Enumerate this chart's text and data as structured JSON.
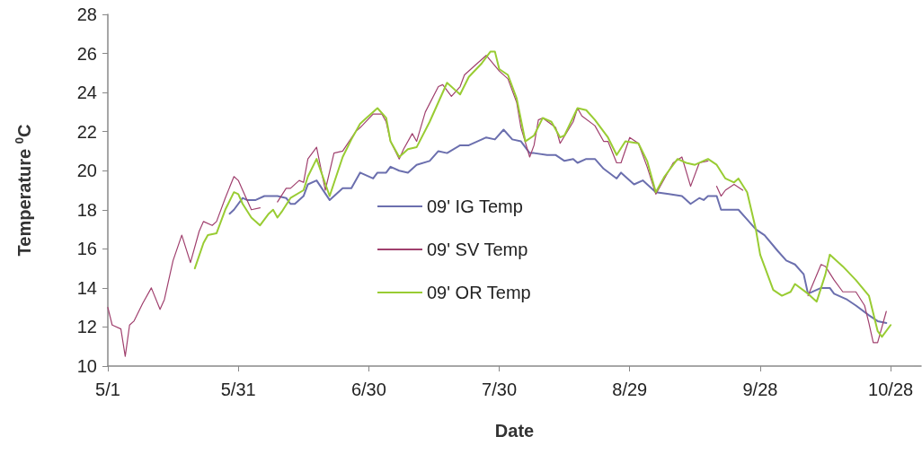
{
  "chart_data": {
    "type": "line",
    "xlabel": "Date",
    "ylabel": "Temperature $^{0}$C",
    "ylim": [
      10,
      28
    ],
    "yticks": [
      10,
      12,
      14,
      16,
      18,
      20,
      22,
      24,
      26,
      28
    ],
    "xlim": [
      "--05-01",
      "--11-04"
    ],
    "xticks": [
      {
        "value": "--05-01",
        "label": "5/1"
      },
      {
        "value": "--05-31",
        "label": "5/31"
      },
      {
        "value": "--06-30",
        "label": "6/30"
      },
      {
        "value": "--07-30",
        "label": "7/30"
      },
      {
        "value": "--08-29",
        "label": "8/29"
      },
      {
        "value": "--09-28",
        "label": "9/28"
      },
      {
        "value": "--10-28",
        "label": "10/28"
      }
    ],
    "grid": false,
    "legend": "center",
    "marker": "none",
    "line_style": "solid",
    "series": [
      {
        "name": "09' IG Temp",
        "color": "#6b6fae",
        "x": [
          "--05-29",
          "--05-30",
          "--06-01",
          "--06-02",
          "--06-04",
          "--06-06",
          "--06-08",
          "--06-09",
          "--06-11",
          "--06-12",
          "--06-13",
          "--06-15",
          "--06-16",
          "--06-18",
          "--06-21",
          "--06-24",
          "--06-26",
          "--06-28",
          "--07-01",
          "--07-02",
          "--07-04",
          "--07-05",
          "--07-07",
          "--07-09",
          "--07-11",
          "--07-14",
          "--07-16",
          "--07-18",
          "--07-21",
          "--07-23",
          "--07-26",
          "--07-27",
          "--07-29",
          "--07-31",
          "--08-02",
          "--08-04",
          "--08-06",
          "--08-07",
          "--08-10",
          "--08-12",
          "--08-14",
          "--08-16",
          "--08-17",
          "--08-19",
          "--08-21",
          "--08-23",
          "--08-26",
          "--08-27",
          "--08-30",
          "--09-01",
          "--09-04",
          "--09-07",
          "--09-10",
          "--09-12",
          "--09-14",
          "--09-15",
          "--09-16",
          "--09-18",
          "--09-19",
          "--09-23",
          "--09-25",
          "--09-27",
          "--09-29",
          "--10-02",
          "--10-04",
          "--10-06",
          "--10-08",
          "--10-09",
          "--10-12",
          "--10-14",
          "--10-15",
          "--10-18",
          "--10-20",
          "--10-23",
          "--10-25",
          "--10-27"
        ],
        "values": [
          17.8,
          18.0,
          18.6,
          18.5,
          18.5,
          18.7,
          18.7,
          18.7,
          18.6,
          18.3,
          18.3,
          18.7,
          19.3,
          19.5,
          18.5,
          19.1,
          19.1,
          19.9,
          19.6,
          19.9,
          19.9,
          20.2,
          20.0,
          19.9,
          20.3,
          20.5,
          21.0,
          20.9,
          21.3,
          21.3,
          21.6,
          21.7,
          21.6,
          22.1,
          21.6,
          21.5,
          20.9,
          20.9,
          20.8,
          20.8,
          20.5,
          20.6,
          20.4,
          20.6,
          20.6,
          20.1,
          19.6,
          19.9,
          19.3,
          19.5,
          18.9,
          18.8,
          18.7,
          18.3,
          18.6,
          18.5,
          18.7,
          18.7,
          18.0,
          18.0,
          17.5,
          17.0,
          16.7,
          15.9,
          15.4,
          15.2,
          14.7,
          13.7,
          14.0,
          14.0,
          13.7,
          13.4,
          13.1,
          12.6,
          12.3,
          12.2
        ]
      },
      {
        "name": "09' SV Temp",
        "color": "#a0406e",
        "x": [
          "--05-01",
          "--05-02",
          "--05-04",
          "--05-05",
          "--05-06",
          "--05-07",
          "--05-09",
          "--05-11",
          "--05-13",
          "--05-14",
          "--05-16",
          "--05-18",
          "--05-20",
          "--05-22",
          "--05-23",
          "--05-25",
          "--05-26",
          "--05-28",
          "--05-30",
          "--05-31",
          "--06-01",
          "--06-03",
          "--06-05",
          "--06-07",
          "--06-09",
          "--06-11",
          "--06-12",
          "--06-14",
          "--06-15",
          "--06-16",
          "--06-18",
          "--06-20",
          "--06-22",
          "--06-24",
          "--06-27",
          "--06-28",
          "--07-01",
          "--07-03",
          "--07-04",
          "--07-05",
          "--07-07",
          "--07-08",
          "--07-10",
          "--07-11",
          "--07-13",
          "--07-16",
          "--07-17",
          "--07-19",
          "--07-21",
          "--07-22",
          "--07-24",
          "--07-27",
          "--07-30",
          "--08-01",
          "--08-03",
          "--08-04",
          "--08-06",
          "--08-07",
          "--08-08",
          "--08-09",
          "--08-12",
          "--08-13",
          "--08-16",
          "--08-17",
          "--08-18",
          "--08-21",
          "--08-23",
          "--08-24",
          "--08-26",
          "--08-27",
          "--08-29",
          "--08-31",
          "--09-02",
          "--09-04",
          "--09-06",
          "--09-08",
          "--09-10",
          "--09-12",
          "--09-14",
          "--09-16",
          "--09-17",
          "--09-18",
          "--09-19",
          "--09-20",
          "--09-22",
          "--09-24",
          "--09-27",
          "--10-09",
          "--10-12",
          "--10-13",
          "--10-15",
          "--10-17",
          "--10-20",
          "--10-22",
          "--10-23",
          "--10-24",
          "--10-25",
          "--10-27"
        ],
        "values": [
          13.0,
          12.1,
          11.9,
          10.5,
          12.1,
          12.3,
          13.2,
          14.0,
          12.9,
          13.4,
          15.4,
          16.7,
          15.3,
          16.9,
          17.4,
          17.2,
          17.4,
          18.6,
          19.7,
          19.5,
          19.0,
          18.0,
          18.1,
          null,
          18.4,
          19.1,
          19.1,
          19.5,
          19.4,
          20.6,
          21.2,
          19.0,
          20.9,
          21.0,
          22.0,
          22.2,
          22.9,
          22.9,
          22.5,
          21.5,
          20.6,
          21.1,
          21.9,
          21.5,
          23.0,
          24.3,
          24.4,
          23.8,
          24.3,
          24.9,
          25.3,
          25.9,
          25.1,
          24.7,
          23.5,
          22.2,
          20.7,
          21.3,
          22.6,
          22.7,
          22.2,
          21.4,
          22.5,
          23.2,
          22.8,
          22.3,
          21.5,
          21.5,
          20.4,
          20.4,
          21.7,
          21.4,
          20.2,
          18.8,
          19.6,
          20.4,
          20.7,
          19.2,
          20.4,
          20.5,
          null,
          19.2,
          18.7,
          19.0,
          19.3,
          19.0,
          null,
          13.6,
          15.2,
          15.1,
          14.4,
          13.8,
          13.8,
          13.1,
          12.2,
          11.2,
          11.2,
          12.8
        ]
      },
      {
        "name": "09' OR Temp",
        "color": "#99cc33",
        "x": [
          "--05-21",
          "--05-23",
          "--05-24",
          "--05-26",
          "--05-28",
          "--05-30",
          "--05-31",
          "--06-01",
          "--06-03",
          "--06-05",
          "--06-07",
          "--06-08",
          "--06-09",
          "--06-10",
          "--06-12",
          "--06-15",
          "--06-16",
          "--06-18",
          "--06-21",
          "--06-24",
          "--06-26",
          "--06-28",
          "--06-29",
          "--07-02",
          "--07-04",
          "--07-05",
          "--07-07",
          "--07-09",
          "--07-11",
          "--07-14",
          "--07-16",
          "--07-18",
          "--07-21",
          "--07-23",
          "--07-26",
          "--07-28",
          "--07-29",
          "--07-30",
          "--08-01",
          "--08-03",
          "--08-05",
          "--08-07",
          "--08-09",
          "--08-11",
          "--08-13",
          "--08-14",
          "--08-17",
          "--08-19",
          "--08-21",
          "--08-24",
          "--08-26",
          "--08-28",
          "--08-31",
          "--09-02",
          "--09-04",
          "--09-06",
          "--09-09",
          "--09-11",
          "--09-13",
          "--09-16",
          "--09-18",
          "--09-20",
          "--09-22",
          "--09-23",
          "--09-25",
          "--09-27",
          "--09-28",
          "--09-29",
          "--10-01",
          "--10-03",
          "--10-05",
          "--10-06",
          "--10-09",
          "--10-11",
          "--10-13",
          "--10-14",
          "--10-17",
          "--10-20",
          "--10-23",
          "--10-25",
          "--10-26",
          "--10-28"
        ],
        "values": [
          15.0,
          16.3,
          16.7,
          16.8,
          18.0,
          18.9,
          18.8,
          18.3,
          17.6,
          17.2,
          17.8,
          18.0,
          17.6,
          17.9,
          18.6,
          19.0,
          19.7,
          20.6,
          18.7,
          20.7,
          21.6,
          22.4,
          22.6,
          23.2,
          22.7,
          21.5,
          20.7,
          21.1,
          21.2,
          22.5,
          23.5,
          24.5,
          23.9,
          24.8,
          25.5,
          26.1,
          26.1,
          25.2,
          24.9,
          23.7,
          21.5,
          21.8,
          22.7,
          22.5,
          21.7,
          21.8,
          23.2,
          23.1,
          22.6,
          21.7,
          20.8,
          21.5,
          21.4,
          20.5,
          18.9,
          19.7,
          20.6,
          20.4,
          20.3,
          20.6,
          20.3,
          19.6,
          19.4,
          19.6,
          18.9,
          17.0,
          15.7,
          15.1,
          13.9,
          13.6,
          13.8,
          14.2,
          13.7,
          13.3,
          14.7,
          15.7,
          15.1,
          14.4,
          13.6,
          11.8,
          11.5,
          12.1
        ]
      }
    ]
  }
}
